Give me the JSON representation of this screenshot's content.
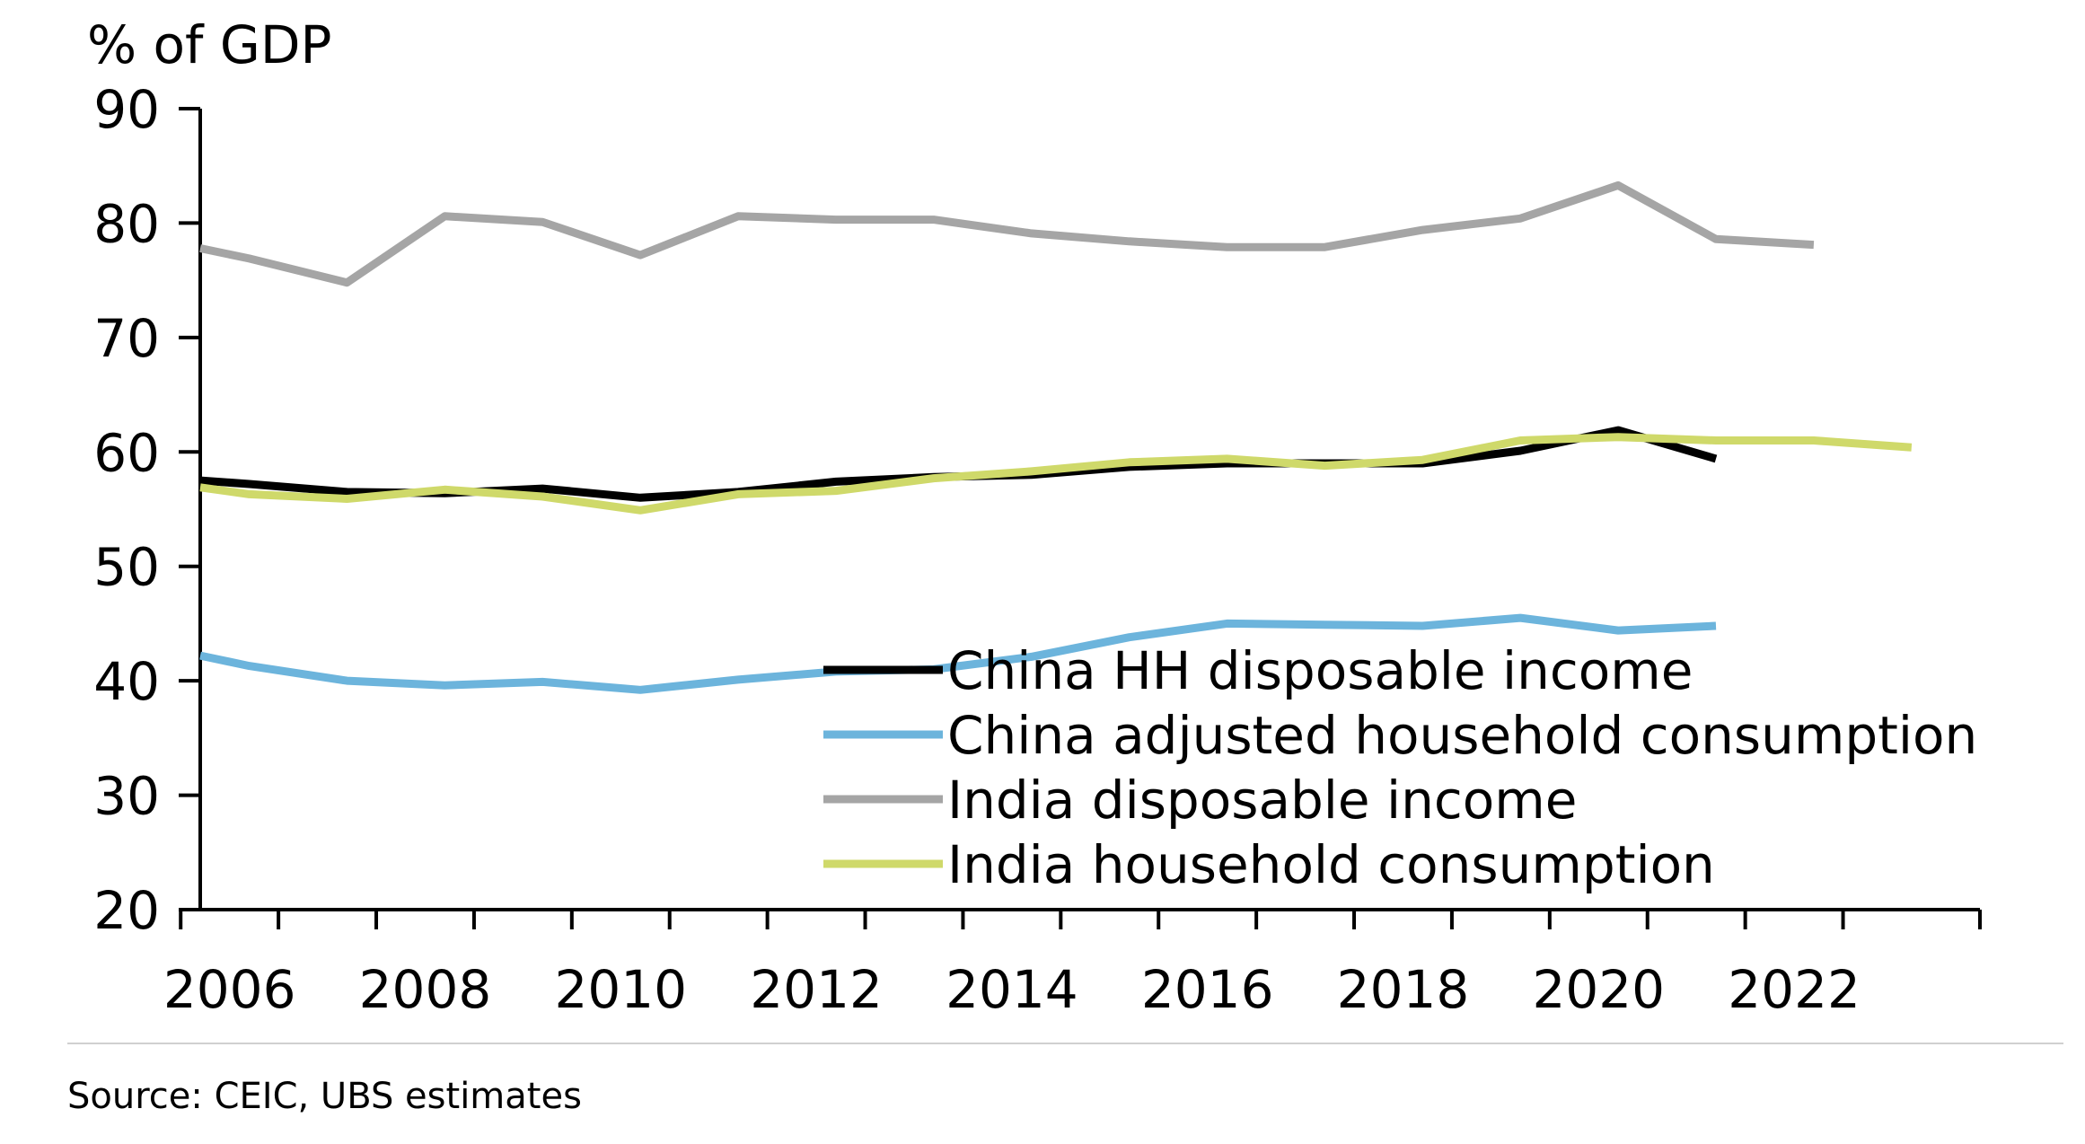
{
  "chart_data": {
    "type": "line",
    "title": "",
    "unit_label": "% of GDP",
    "xlabel": "",
    "ylabel": "",
    "xlim": [
      2005.7,
      2023.9
    ],
    "ylim": [
      20,
      90
    ],
    "y_ticks": [
      20,
      30,
      40,
      50,
      60,
      70,
      80,
      90
    ],
    "x_ticks": [
      2006,
      2008,
      2010,
      2012,
      2014,
      2016,
      2018,
      2020,
      2022
    ],
    "x_tick_labels": [
      "2006",
      "2008",
      "2010",
      "2012",
      "2014",
      "2016",
      "2018",
      "2020",
      "2022"
    ],
    "grid": false,
    "legend_position": "bottom-right",
    "series": [
      {
        "name": "China HH disposable income",
        "color": "#000000",
        "x": [
          2005.7,
          2006.2,
          2007.2,
          2008.2,
          2009.2,
          2010.2,
          2011.2,
          2012.2,
          2013.2,
          2014.2,
          2015.2,
          2016.2,
          2017.2,
          2018.2,
          2019.2,
          2020.2,
          2021.2
        ],
        "values": [
          57.5,
          57.2,
          56.5,
          56.4,
          56.8,
          56.0,
          56.5,
          57.4,
          57.8,
          58.0,
          58.7,
          59.0,
          59.0,
          59.0,
          60.1,
          61.9,
          59.4
        ]
      },
      {
        "name": "China adjusted household consumption",
        "color": "#6cb4dc",
        "x": [
          2005.7,
          2006.2,
          2007.2,
          2008.2,
          2009.2,
          2010.2,
          2011.2,
          2012.2,
          2013.2,
          2014.2,
          2015.2,
          2016.2,
          2017.2,
          2018.2,
          2019.2,
          2020.2,
          2021.2
        ],
        "values": [
          42.2,
          41.3,
          40.0,
          39.6,
          39.9,
          39.2,
          40.1,
          40.8,
          41.0,
          42.1,
          43.8,
          45.0,
          44.9,
          44.8,
          45.5,
          44.4,
          44.8
        ]
      },
      {
        "name": "India disposable income",
        "color": "#a5a5a5",
        "x": [
          2005.7,
          2006.2,
          2007.2,
          2008.2,
          2009.2,
          2010.2,
          2011.2,
          2012.2,
          2013.2,
          2014.2,
          2015.2,
          2016.2,
          2017.2,
          2018.2,
          2019.2,
          2020.2,
          2021.2,
          2022.2
        ],
        "values": [
          77.8,
          76.9,
          74.8,
          80.6,
          80.1,
          77.2,
          80.6,
          80.3,
          80.3,
          79.1,
          78.4,
          77.9,
          77.9,
          79.4,
          80.4,
          83.3,
          78.6,
          78.1
        ]
      },
      {
        "name": "India household consumption",
        "color": "#cfd96a",
        "x": [
          2005.7,
          2006.2,
          2007.2,
          2008.2,
          2009.2,
          2010.2,
          2011.2,
          2012.2,
          2013.2,
          2014.2,
          2015.2,
          2016.2,
          2017.2,
          2018.2,
          2019.2,
          2020.2,
          2021.2,
          2022.2,
          2023.2
        ],
        "values": [
          56.9,
          56.3,
          55.9,
          56.7,
          56.1,
          54.9,
          56.3,
          56.6,
          57.7,
          58.3,
          59.1,
          59.4,
          58.8,
          59.3,
          61.0,
          61.3,
          61.0,
          61.0,
          60.4
        ]
      }
    ]
  },
  "source": "Source: CEIC, UBS estimates"
}
